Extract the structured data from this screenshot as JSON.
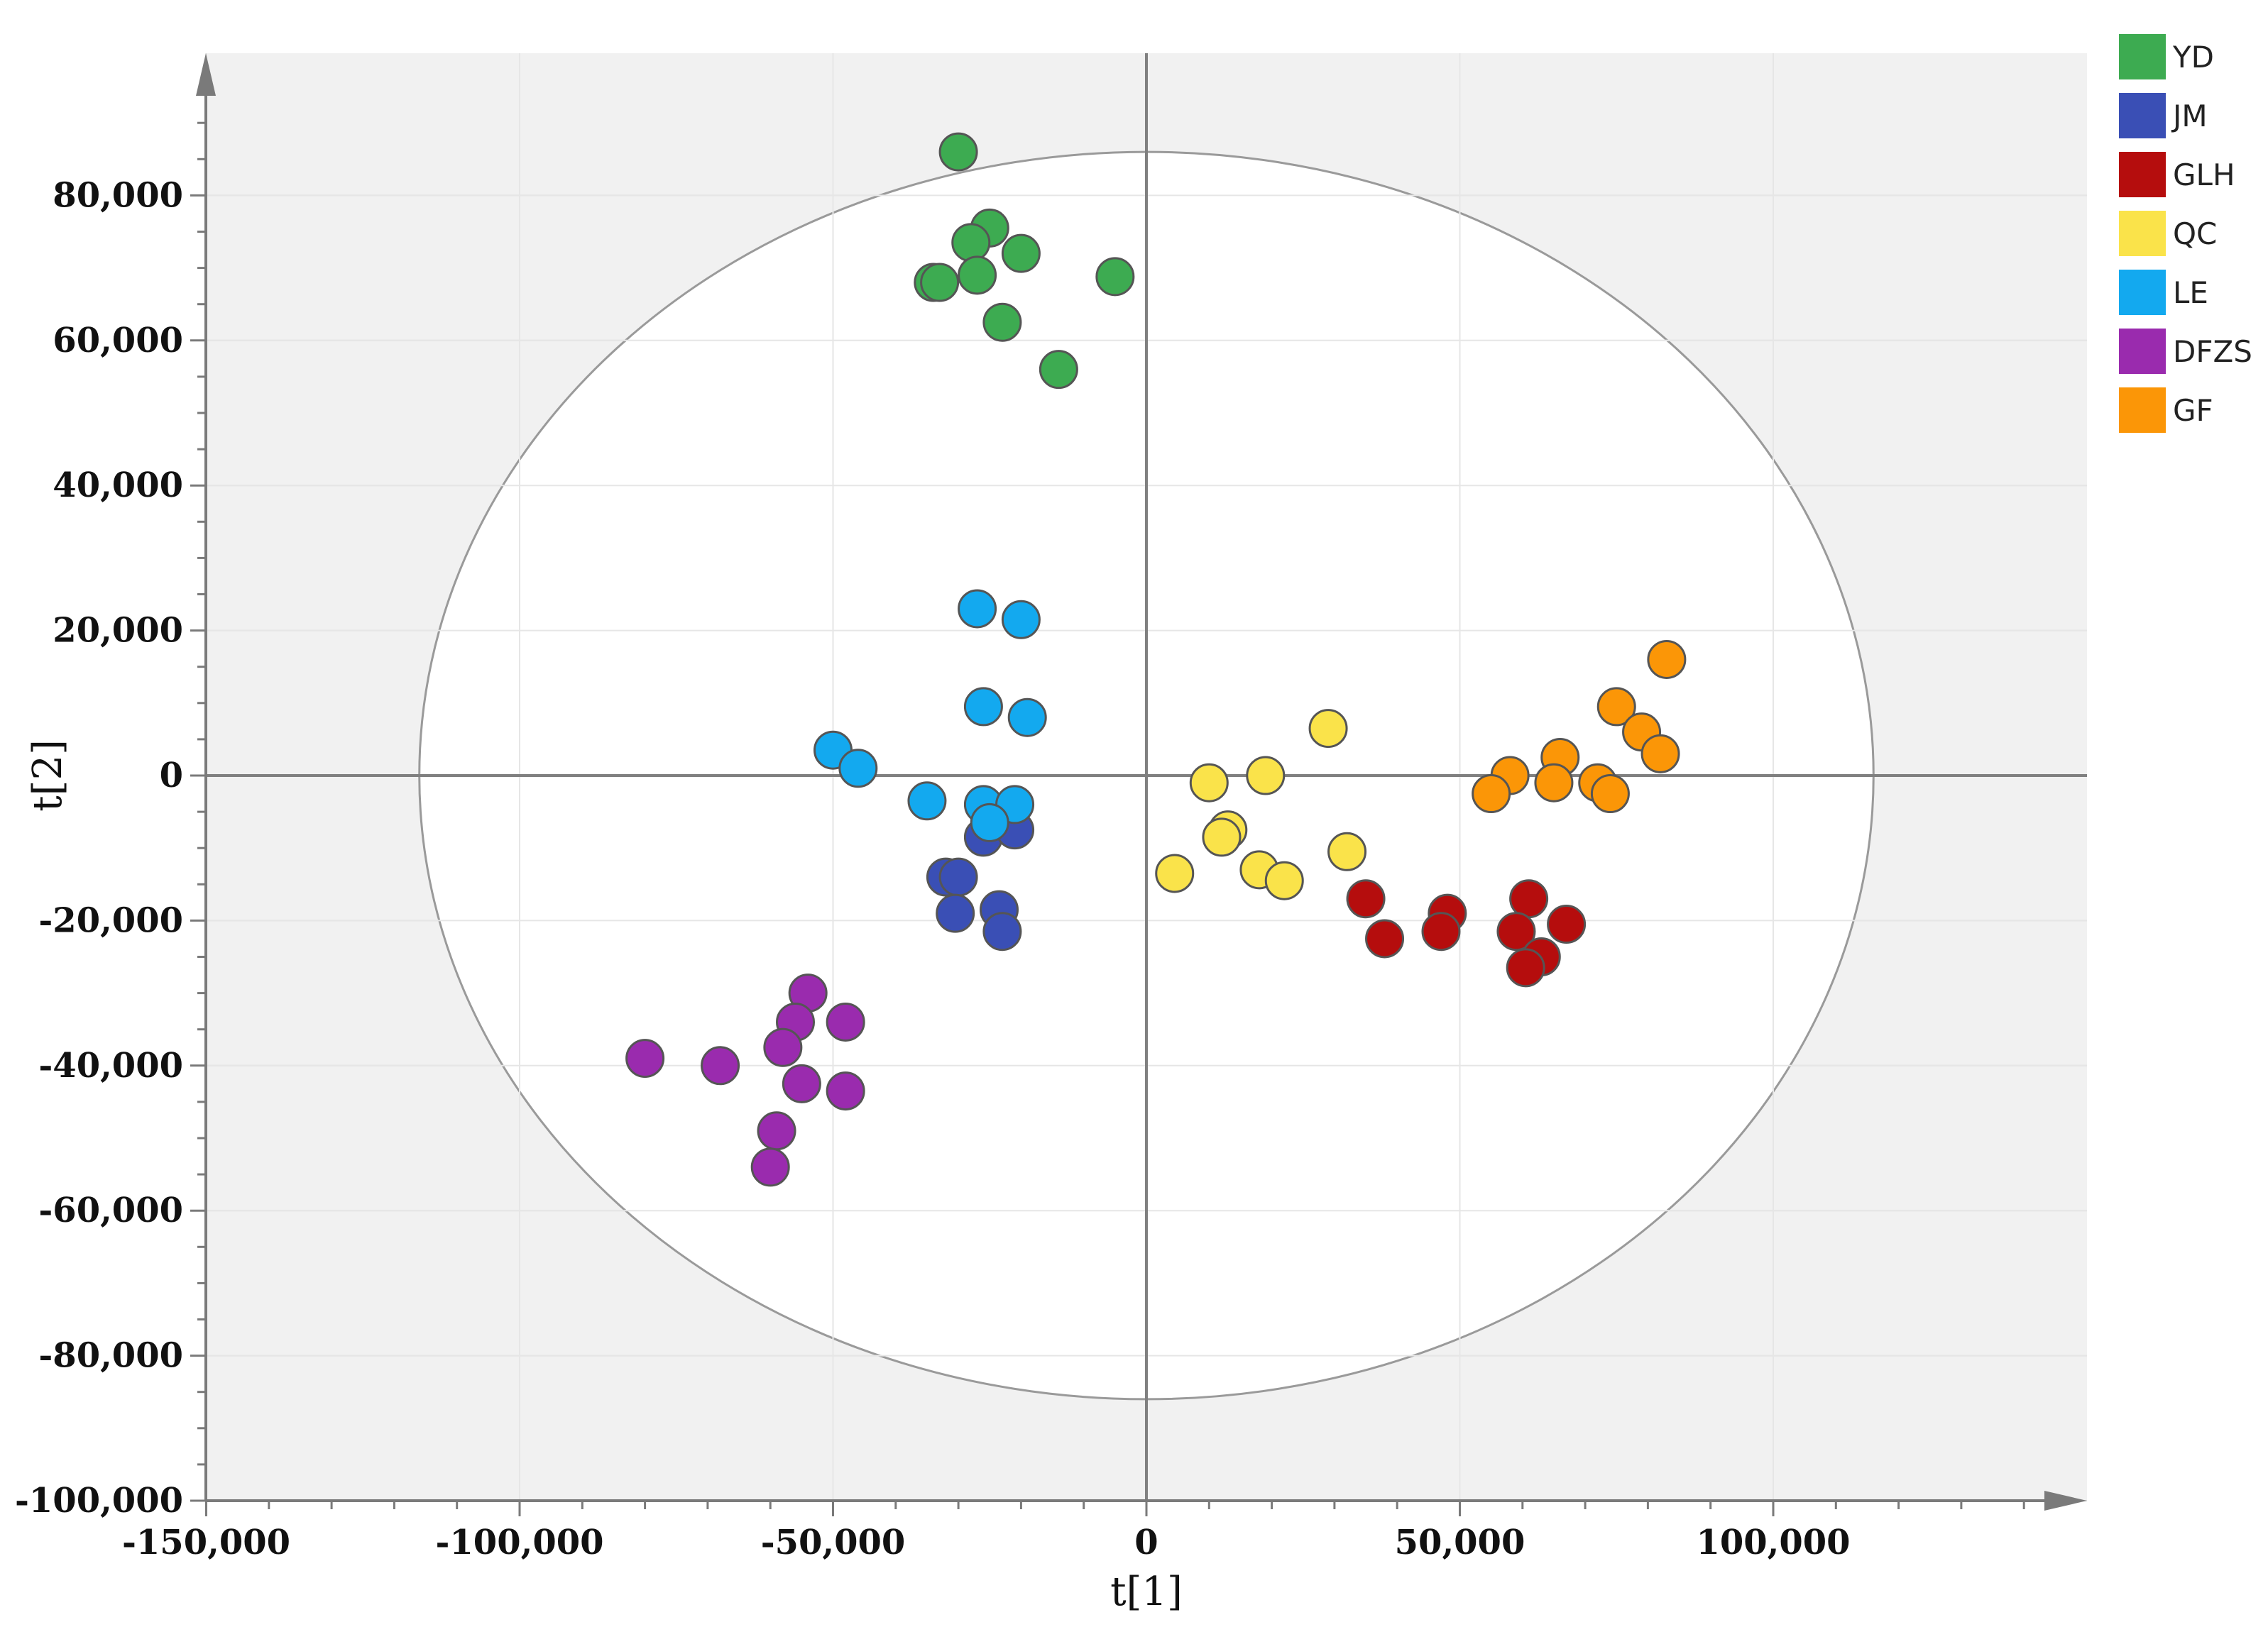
{
  "chart_data": {
    "type": "scatter",
    "title": "",
    "xlabel": "t[1]",
    "ylabel": "t[2]",
    "xlim": [
      -150000,
      150000
    ],
    "ylim": [
      -100000,
      100000
    ],
    "xticks": [
      -150000,
      -100000,
      -50000,
      0,
      50000,
      100000
    ],
    "xtick_labels": [
      "-150,000",
      "-100,000",
      "-50,000",
      "0",
      "50,000",
      "100,000"
    ],
    "yticks": [
      80000,
      60000,
      40000,
      20000,
      0,
      -20000,
      -40000,
      -60000,
      -80000,
      -100000
    ],
    "ytick_labels": [
      "80,000",
      "60,000",
      "40,000",
      "20,000",
      "0",
      "-20,000",
      "-40,000",
      "-60,000",
      "-80,000",
      "-100,000"
    ],
    "ellipse": {
      "rx": 116000,
      "ry": 86000
    },
    "grid": true,
    "legend_position": "top-right",
    "series": [
      {
        "name": "YD",
        "color": "#3dab51",
        "points": [
          [
            -30000,
            86000
          ],
          [
            -25000,
            75500
          ],
          [
            -28000,
            73500
          ],
          [
            -20000,
            72000
          ],
          [
            -34000,
            68000
          ],
          [
            -33000,
            68000
          ],
          [
            -27000,
            69000
          ],
          [
            -5000,
            68800
          ],
          [
            -23000,
            62500
          ],
          [
            -14000,
            56000
          ]
        ]
      },
      {
        "name": "JM",
        "color": "#3a4fb5",
        "points": [
          [
            -26000,
            -8500
          ],
          [
            -21000,
            -7500
          ],
          [
            -32000,
            -14000
          ],
          [
            -30000,
            -14000
          ],
          [
            -30500,
            -19000
          ],
          [
            -23500,
            -18500
          ],
          [
            -23000,
            -21500
          ]
        ]
      },
      {
        "name": "GLH",
        "color": "#b50d0d",
        "points": [
          [
            35000,
            -17000
          ],
          [
            38000,
            -22500
          ],
          [
            48000,
            -19000
          ],
          [
            47000,
            -21500
          ],
          [
            61000,
            -17000
          ],
          [
            59000,
            -21500
          ],
          [
            63000,
            -25000
          ],
          [
            60500,
            -26500
          ],
          [
            67000,
            -20500
          ]
        ]
      },
      {
        "name": "QC",
        "color": "#fae34a",
        "points": [
          [
            29000,
            6500
          ],
          [
            10000,
            -1000
          ],
          [
            19000,
            0
          ],
          [
            13000,
            -7500
          ],
          [
            12000,
            -8500
          ],
          [
            4500,
            -13500
          ],
          [
            18000,
            -13000
          ],
          [
            22000,
            -14500
          ],
          [
            32000,
            -10500
          ]
        ]
      },
      {
        "name": "LE",
        "color": "#13a9ef",
        "points": [
          [
            -27000,
            23000
          ],
          [
            -20000,
            21500
          ],
          [
            -26000,
            9500
          ],
          [
            -19000,
            8000
          ],
          [
            -50000,
            3500
          ],
          [
            -46000,
            1000
          ],
          [
            -35000,
            -3500
          ],
          [
            -26000,
            -4000
          ],
          [
            -21000,
            -4000
          ],
          [
            -25000,
            -6500
          ]
        ]
      },
      {
        "name": "DFZS",
        "color": "#9a2bae",
        "points": [
          [
            -54000,
            -30000
          ],
          [
            -56000,
            -34000
          ],
          [
            -48000,
            -34000
          ],
          [
            -80000,
            -39000
          ],
          [
            -68000,
            -40000
          ],
          [
            -58000,
            -37500
          ],
          [
            -55000,
            -42500
          ],
          [
            -48000,
            -43500
          ],
          [
            -59000,
            -49000
          ],
          [
            -60000,
            -54000
          ]
        ]
      },
      {
        "name": "GF",
        "color": "#fb9607",
        "points": [
          [
            83000,
            16000
          ],
          [
            75000,
            9500
          ],
          [
            79000,
            6000
          ],
          [
            82000,
            3000
          ],
          [
            66000,
            2500
          ],
          [
            58000,
            0
          ],
          [
            55000,
            -2500
          ],
          [
            65000,
            -1000
          ],
          [
            72000,
            -1000
          ],
          [
            74000,
            -2500
          ]
        ]
      }
    ]
  }
}
